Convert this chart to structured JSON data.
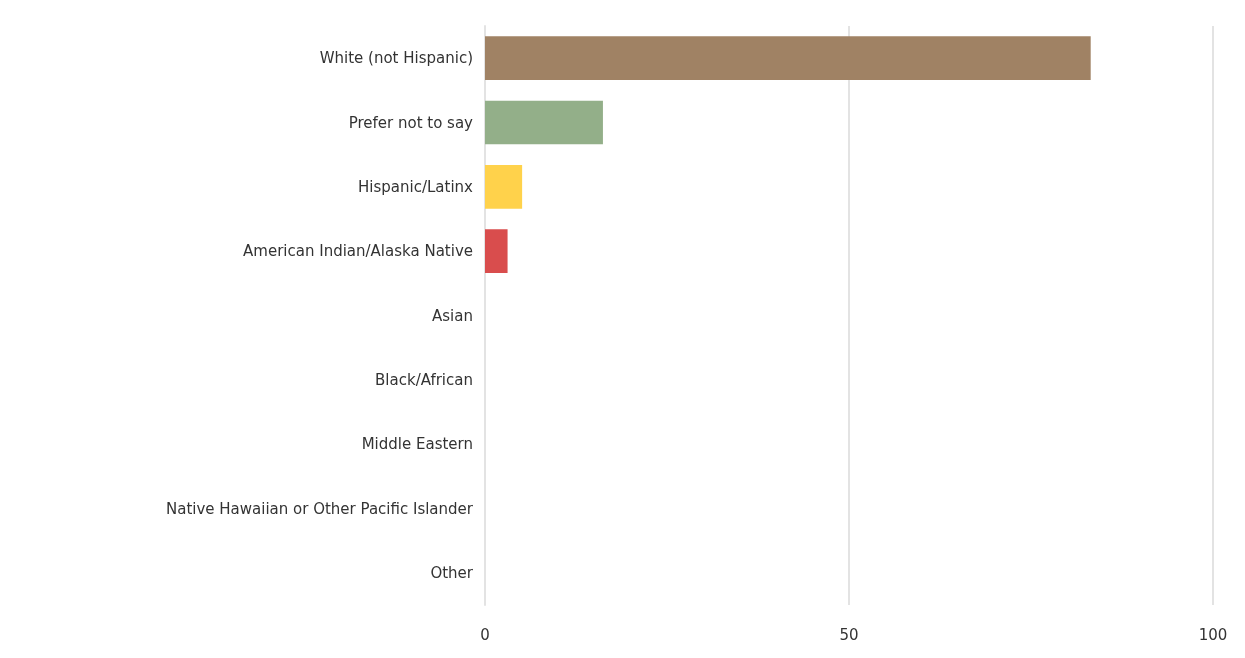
{
  "chart_data": {
    "type": "bar",
    "orientation": "horizontal",
    "categories": [
      "White (not Hispanic)",
      "Prefer not to say",
      "Hispanic/Latinx",
      "American Indian/Alaska Native",
      "Asian",
      "Black/African",
      "Middle Eastern",
      "Native Hawaiian or Other Pacific Islander",
      "Other"
    ],
    "values": [
      83.2,
      16.2,
      5.1,
      3.1,
      0,
      0,
      0,
      0,
      0
    ],
    "colors": [
      "#a08264",
      "#93af89",
      "#ffd24b",
      "#d94d4d",
      "#a08264",
      "#a08264",
      "#a08264",
      "#a08264",
      "#a08264"
    ],
    "xlim": [
      0,
      100
    ],
    "xticks": [
      0,
      50,
      100
    ],
    "grid": "x"
  }
}
